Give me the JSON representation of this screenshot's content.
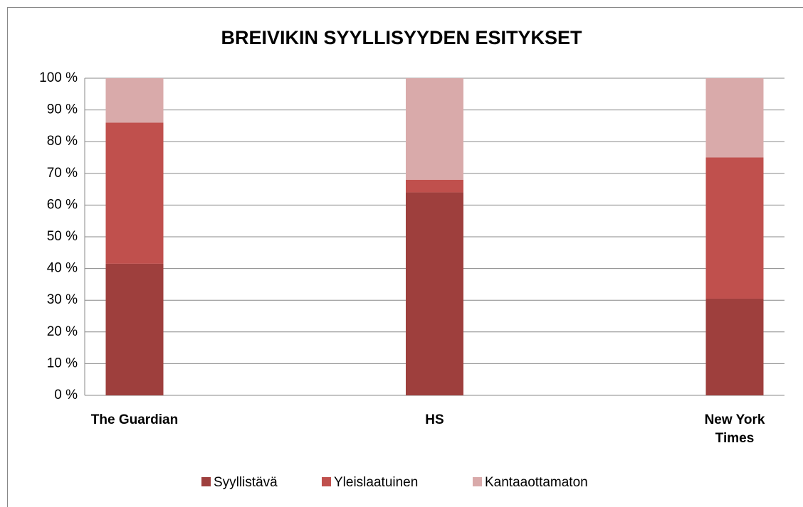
{
  "chart_data": {
    "type": "stacked_bar",
    "title": "BREIVIKIN SYYLLISYYDEN ESITYKSET",
    "categories": [
      "The Guardian",
      "HS",
      "New York Times"
    ],
    "series": [
      {
        "name": "Syyllistävä",
        "color": "#9e3f3d",
        "values": [
          41.5,
          64,
          30.5
        ]
      },
      {
        "name": "Yleislaatuinen",
        "color": "#c0504d",
        "values": [
          44.5,
          4,
          44.5
        ]
      },
      {
        "name": "Kantaaottamaton",
        "color": "#d9aaaa",
        "values": [
          14,
          32,
          25
        ]
      }
    ],
    "ylim": [
      0,
      100
    ],
    "yticks": [
      {
        "value": 0,
        "label": "0 %"
      },
      {
        "value": 10,
        "label": "10 %"
      },
      {
        "value": 20,
        "label": "20 %"
      },
      {
        "value": 30,
        "label": "30 %"
      },
      {
        "value": 40,
        "label": "40 %"
      },
      {
        "value": 50,
        "label": "50 %"
      },
      {
        "value": 60,
        "label": "60 %"
      },
      {
        "value": 70,
        "label": "70 %"
      },
      {
        "value": 80,
        "label": "80 %"
      },
      {
        "value": 90,
        "label": "90 %"
      },
      {
        "value": 100,
        "label": "100 %"
      }
    ],
    "grid": true,
    "legend": "bottom"
  }
}
